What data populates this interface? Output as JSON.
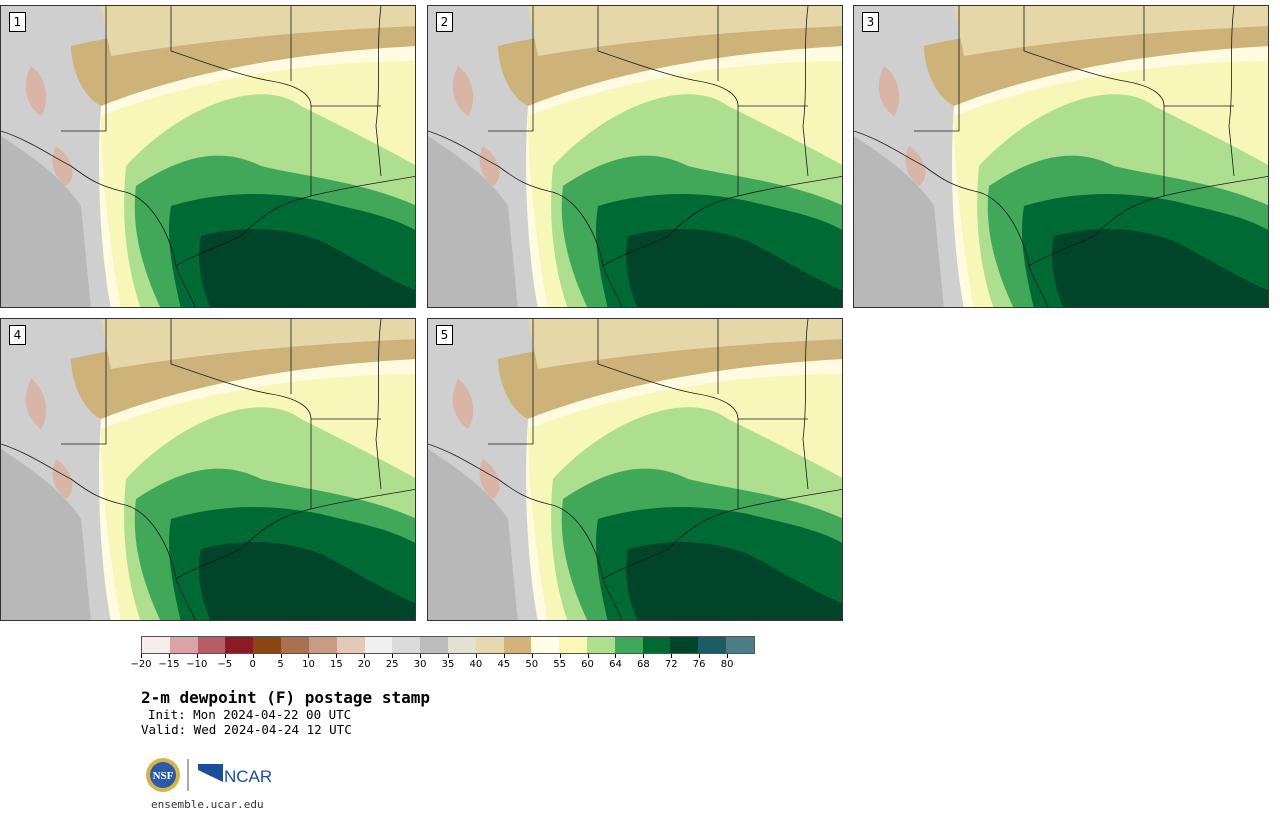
{
  "title": "2-m dewpoint (F) postage stamp",
  "init": "Init: Mon 2024-04-22 00 UTC",
  "valid": "Valid: Wed 2024-04-24 12 UTC",
  "url": "ensemble.ucar.edu",
  "logo_ncar": "NCAR",
  "logo_nsf": "NSF",
  "members": [
    "1",
    "2",
    "3",
    "4",
    "5"
  ],
  "colorbar": {
    "colors": [
      "#f6ecec",
      "#d9a3a8",
      "#b65d68",
      "#8b1a24",
      "#8a4512",
      "#a8714f",
      "#c79c83",
      "#e5c9b8",
      "#f0f0f0",
      "#dadada",
      "#bdbdbd",
      "#e2e2d4",
      "#e6d9b0",
      "#d2b47a",
      "#fffde6",
      "#f8f8b8",
      "#addf8f",
      "#41a85a",
      "#006a34",
      "#00442a",
      "#1d5c66",
      "#4a7d86"
    ],
    "tick_labels": [
      "−20",
      "−15",
      "−10",
      "−5",
      "0",
      "5",
      "10",
      "15",
      "20",
      "25",
      "30",
      "35",
      "40",
      "45",
      "50",
      "55",
      "60",
      "64",
      "68",
      "72",
      "76",
      "80"
    ]
  },
  "map_palette": {
    "gray": "#cfcfcf",
    "light_gray": "#e6e6e6",
    "dark_gray": "#b8b8b8",
    "pink": "#d9b5a8",
    "tan": "#cdb27a",
    "light_tan": "#e6d7a8",
    "pale_yellow": "#fffbe0",
    "yellow": "#f6f7b8",
    "light_green": "#addf8f",
    "green": "#41a85a",
    "dark_green": "#006a34",
    "darkest_green": "#00442a"
  }
}
